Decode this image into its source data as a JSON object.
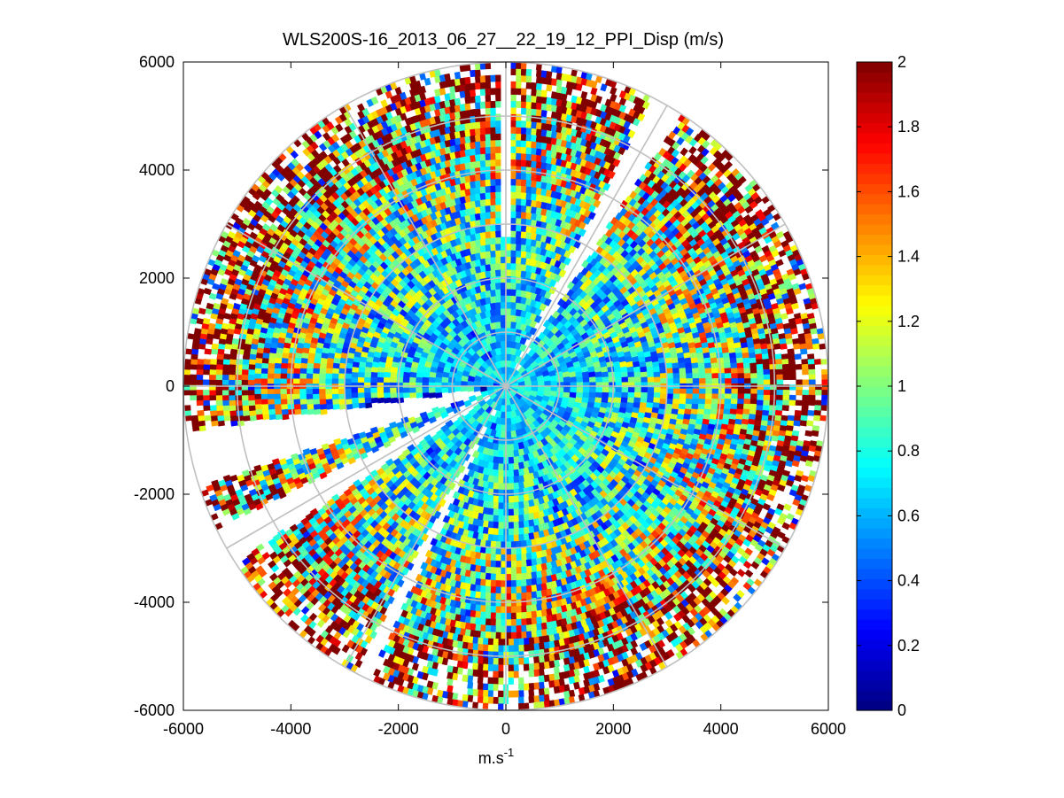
{
  "chart_data": {
    "type": "heatmap",
    "subtype": "polar PPI scan",
    "title": "WLS200S-16_2013_06_27__22_19_12_PPI_Disp (m/s)",
    "xlabel_base": "m.s",
    "xlabel_superscript": "-1",
    "ylabel": "",
    "xlim": [
      -6000,
      6000
    ],
    "ylim": [
      -6000,
      6000
    ],
    "x_ticks": [
      -6000,
      -4000,
      -2000,
      0,
      2000,
      4000,
      6000
    ],
    "y_ticks": [
      -6000,
      -4000,
      -2000,
      0,
      2000,
      4000,
      6000
    ],
    "x_tick_labels": [
      "-6000",
      "-4000",
      "-2000",
      "0",
      "2000",
      "4000",
      "6000"
    ],
    "y_tick_labels": [
      "-6000",
      "-4000",
      "-2000",
      "0",
      "2000",
      "4000",
      "6000"
    ],
    "max_range": 6000,
    "range_rings": [
      1000,
      2000,
      3000,
      4000,
      5000,
      6000
    ],
    "spoke_angles_deg": [
      0,
      30,
      60,
      90,
      120,
      150,
      180,
      210,
      240,
      270,
      300,
      330
    ],
    "colorbar": {
      "min": 0,
      "max": 2,
      "colormap": "jet",
      "ticks": [
        0,
        0.2,
        0.4,
        0.6,
        0.8,
        1,
        1.2,
        1.4,
        1.6,
        1.8,
        2
      ],
      "tick_labels": [
        "0",
        "0.2",
        "0.4",
        "0.6",
        "0.8",
        "1",
        "1.2",
        "1.4",
        "1.6",
        "1.8",
        "2"
      ]
    },
    "field_description": {
      "value_range": [
        0,
        2
      ],
      "typical_near_center": 0.7,
      "typical_mid_range": 0.9,
      "typical_outer_ring": 1.9,
      "missing_data_sectors_compass_deg": [
        [
          359,
          360
        ],
        [
          0,
          1
        ],
        [
          27,
          33
        ],
        [
          252,
          262
        ],
        [
          237,
          244
        ],
        [
          205,
          208
        ]
      ],
      "low_value_sector_compass_deg": [
        259,
        264
      ],
      "low_value_sector_range": [
        300,
        2700
      ],
      "low_value_sector_value": 0.05
    }
  },
  "colors": {
    "background": "#ffffff",
    "axes_frame": "#000000",
    "grid": "#c0c0c0",
    "missing_data": "#ffffff"
  }
}
